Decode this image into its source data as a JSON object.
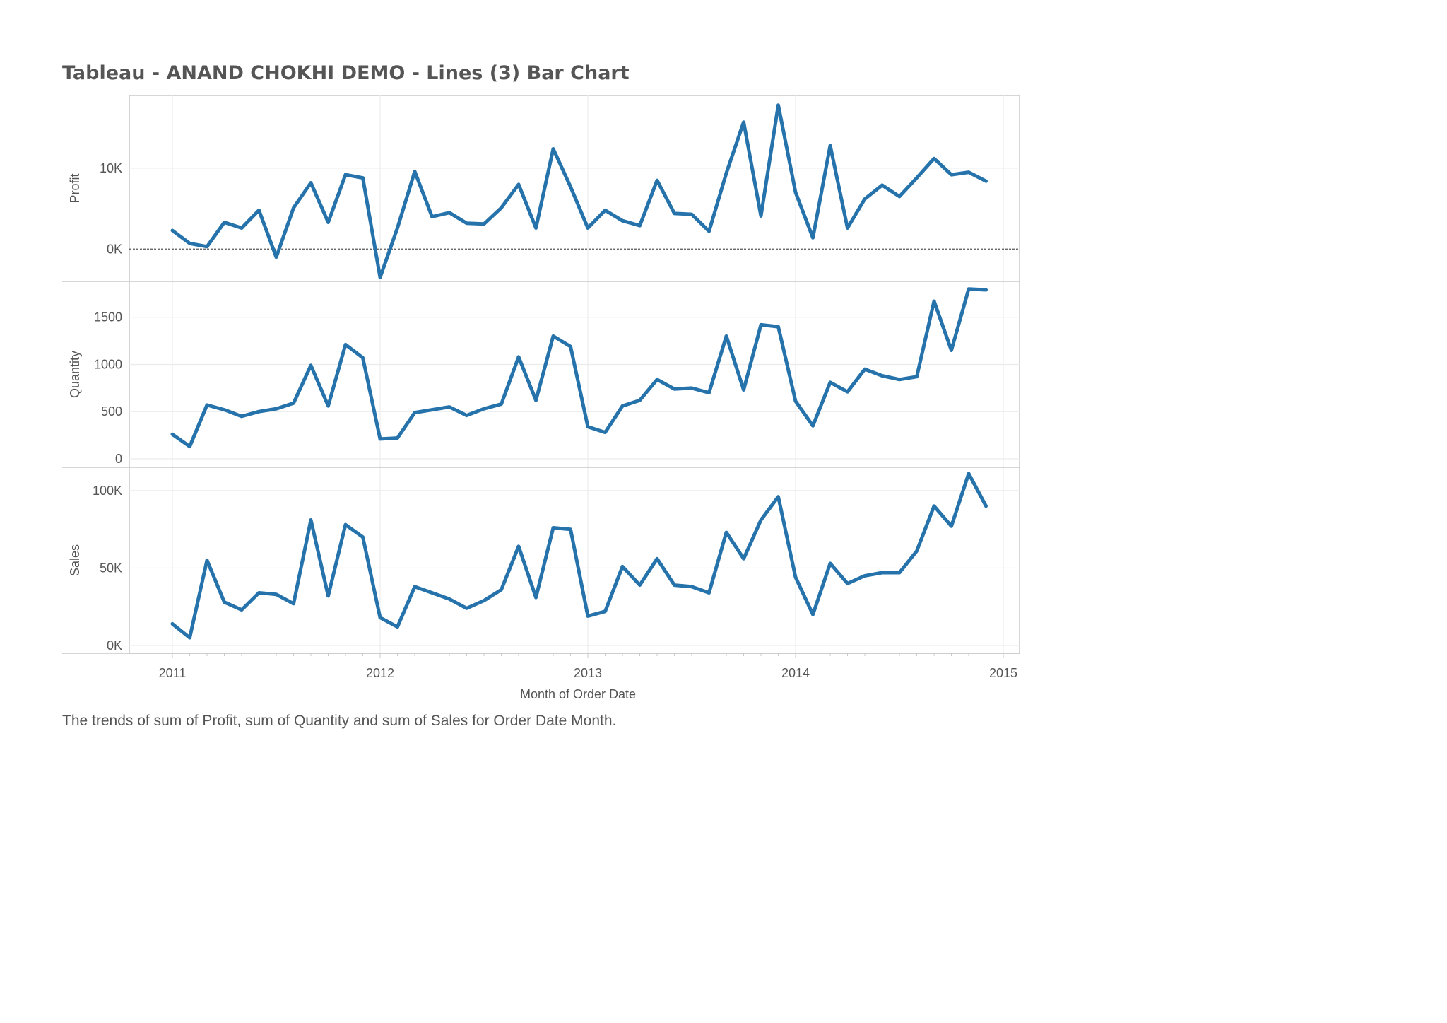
{
  "title": "Tableau - ANAND CHOKHI DEMO - Lines (3) Bar Chart",
  "caption": "The trends of sum of Profit, sum of Quantity and sum of Sales for Order Date Month.",
  "colors": {
    "line": "#2673ac",
    "grid": "#ececec",
    "border": "#c8c8c8",
    "text": "#555555",
    "zero_line": "#555555"
  },
  "chart_data": {
    "type": "line",
    "xlabel": "Month of Order Date",
    "x_ticks": [
      "2011",
      "2012",
      "2013",
      "2014",
      "2015"
    ],
    "x_start": "2011-01",
    "x_end": "2014-12",
    "panels": [
      {
        "name": "Profit",
        "ylabel": "Profit",
        "ylim": [
          -4000,
          19000
        ],
        "y_ticks": [
          {
            "value": 0,
            "label": "0K"
          },
          {
            "value": 10000,
            "label": "10K"
          }
        ],
        "zero_line": true,
        "values": [
          2300,
          700,
          300,
          3300,
          2600,
          4800,
          -1000,
          5100,
          8200,
          3300,
          9200,
          8800,
          -3500,
          2600,
          9600,
          4000,
          4500,
          3200,
          3100,
          5100,
          8000,
          2600,
          12400,
          7700,
          2600,
          4800,
          3500,
          2900,
          8500,
          4400,
          4300,
          2200,
          9400,
          15700,
          4100,
          17800,
          7000,
          1400,
          12800,
          2600,
          6200,
          7900,
          6500,
          8800,
          11200,
          9200,
          9500,
          8400
        ]
      },
      {
        "name": "Quantity",
        "ylabel": "Quantity",
        "ylim": [
          -90,
          1880
        ],
        "y_ticks": [
          {
            "value": 0,
            "label": "0"
          },
          {
            "value": 500,
            "label": "500"
          },
          {
            "value": 1000,
            "label": "1000"
          },
          {
            "value": 1500,
            "label": "1500"
          }
        ],
        "values": [
          260,
          130,
          570,
          520,
          450,
          500,
          530,
          590,
          990,
          560,
          1210,
          1070,
          210,
          220,
          490,
          520,
          550,
          460,
          530,
          580,
          1080,
          620,
          1300,
          1190,
          340,
          280,
          560,
          620,
          840,
          740,
          750,
          700,
          1300,
          730,
          1420,
          1400,
          610,
          350,
          810,
          710,
          950,
          880,
          840,
          870,
          1670,
          1150,
          1800,
          1790
        ]
      },
      {
        "name": "Sales",
        "ylabel": "Sales",
        "ylim": [
          -5000,
          115000
        ],
        "y_ticks": [
          {
            "value": 0,
            "label": "0K"
          },
          {
            "value": 50000,
            "label": "50K"
          },
          {
            "value": 100000,
            "label": "100K"
          }
        ],
        "values": [
          14000,
          5000,
          55000,
          28000,
          23000,
          34000,
          33000,
          27000,
          81000,
          32000,
          78000,
          70000,
          18000,
          12000,
          38000,
          34000,
          30000,
          24000,
          29000,
          36000,
          64000,
          31000,
          76000,
          75000,
          19000,
          22000,
          51000,
          39000,
          56000,
          39000,
          38000,
          34000,
          73000,
          56000,
          81000,
          96000,
          44000,
          20000,
          53000,
          40000,
          45000,
          47000,
          47000,
          61000,
          90000,
          77000,
          111000,
          90000
        ]
      }
    ]
  }
}
